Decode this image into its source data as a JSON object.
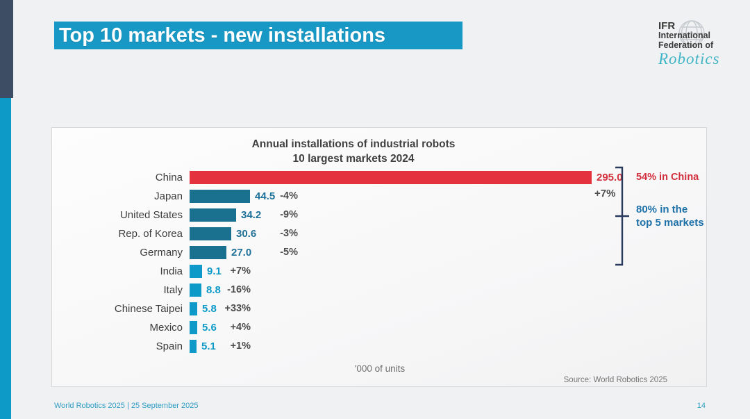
{
  "slide": {
    "title": "Top 10 markets - new installations",
    "footer_left": "World Robotics 2025  | 25 September 2025",
    "page_number": "14"
  },
  "logo": {
    "line1": "IFR",
    "line2": "International",
    "line3": "Federation of",
    "script": "Robotics"
  },
  "chart_data": {
    "type": "bar",
    "orientation": "horizontal",
    "title_line1": "Annual installations of industrial robots",
    "title_line2": "10 largest markets 2024",
    "xlabel": "'000 of units",
    "source": "Source: World Robotics 2025",
    "xlim": [
      0,
      300
    ],
    "unit": "'000 of units",
    "rows": [
      {
        "label": "China",
        "value": 295.0,
        "value_label": "295.0",
        "change": "+7%",
        "group": "china"
      },
      {
        "label": "Japan",
        "value": 44.5,
        "value_label": "44.5",
        "change": "-4%",
        "group": "top"
      },
      {
        "label": "United States",
        "value": 34.2,
        "value_label": "34.2",
        "change": "-9%",
        "group": "top"
      },
      {
        "label": "Rep. of Korea",
        "value": 30.6,
        "value_label": "30.6",
        "change": "-3%",
        "group": "top"
      },
      {
        "label": "Germany",
        "value": 27.0,
        "value_label": "27.0",
        "change": "-5%",
        "group": "top"
      },
      {
        "label": "India",
        "value": 9.1,
        "value_label": "9.1",
        "change": "+7%",
        "group": "bottom"
      },
      {
        "label": "Italy",
        "value": 8.8,
        "value_label": "8.8",
        "change": "-16%",
        "group": "bottom"
      },
      {
        "label": "Chinese Taipei",
        "value": 5.8,
        "value_label": "5.8",
        "change": "+33%",
        "group": "bottom"
      },
      {
        "label": "Mexico",
        "value": 5.6,
        "value_label": "5.6",
        "change": "+4%",
        "group": "bottom"
      },
      {
        "label": "Spain",
        "value": 5.1,
        "value_label": "5.1",
        "change": "+1%",
        "group": "bottom"
      }
    ],
    "annotations": {
      "china_share": "54% in China",
      "top5_share": "80% in the\ntop 5 markets"
    },
    "legend_position": "none",
    "grid": false,
    "colors": {
      "china_bar": "#e4323e",
      "top_bar": "#19708f",
      "bottom_bar": "#0d9ac8",
      "china_value": "#d22f3c",
      "top_value": "#1d7097",
      "bottom_value": "#0d9ac8",
      "change_text": "#4d4d4d",
      "china_annotation": "#d22f3c",
      "top5_annotation": "#1d71a8",
      "bracket": "#2a3a5e"
    }
  }
}
